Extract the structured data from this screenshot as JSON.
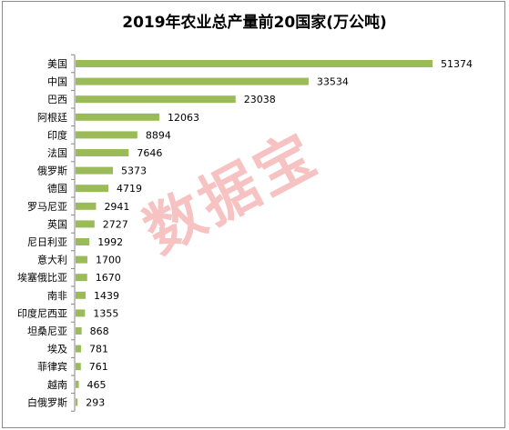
{
  "chart_data": {
    "type": "bar",
    "orientation": "horizontal",
    "title": "2019年农业总产量前20国家(万公吨)",
    "categories": [
      "美国",
      "中国",
      "巴西",
      "阿根廷",
      "印度",
      "法国",
      "俄罗斯",
      "德国",
      "罗马尼亚",
      "英国",
      "尼日利亚",
      "意大利",
      "埃塞俄比亚",
      "南非",
      "印度尼西亚",
      "坦桑尼亚",
      "埃及",
      "菲律宾",
      "越南",
      "白俄罗斯"
    ],
    "values": [
      51374,
      33534,
      23038,
      12063,
      8894,
      7646,
      5373,
      4719,
      2941,
      2727,
      1992,
      1700,
      1670,
      1439,
      1355,
      868,
      781,
      761,
      465,
      293
    ],
    "data_labels": true,
    "grid": false,
    "legend": "none",
    "bar_color": "#9bbb59",
    "axis_color": "#868686"
  },
  "watermark": "数据宝"
}
